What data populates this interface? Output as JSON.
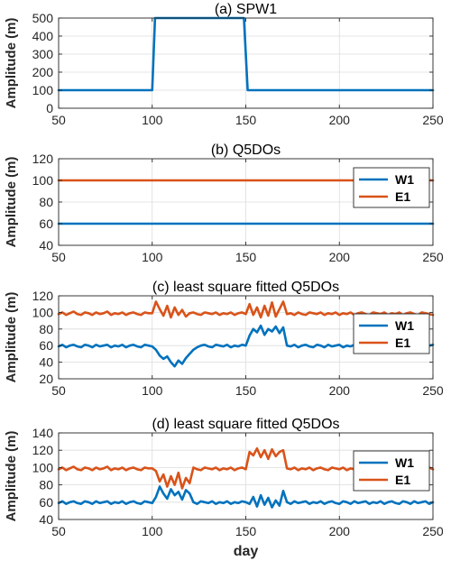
{
  "colors": {
    "W1": "#0072BD",
    "E1": "#D95319",
    "SPW1": "#0072BD"
  },
  "xlabel_bottom": "day",
  "chart_data": [
    {
      "type": "line",
      "title": "(a) SPW1",
      "ylabel": "Amplitude (m)",
      "xlim": [
        50,
        250
      ],
      "ylim": [
        0,
        500
      ],
      "xticks": [
        50,
        100,
        150,
        200,
        250
      ],
      "yticks": [
        0,
        100,
        200,
        300,
        400,
        500
      ],
      "grid": true,
      "legend": null,
      "series": [
        {
          "color": "#0072BD",
          "x": [
            50,
            100,
            101.5,
            149,
            151,
            250
          ],
          "y": [
            100,
            100,
            500,
            500,
            100,
            100
          ]
        }
      ]
    },
    {
      "type": "line",
      "title": "(b) Q5DOs",
      "ylabel": "Amplitude (m)",
      "xlim": [
        50,
        250
      ],
      "ylim": [
        40,
        120
      ],
      "xticks": [
        50,
        100,
        150,
        200,
        250
      ],
      "yticks": [
        40,
        60,
        80,
        100,
        120
      ],
      "grid": true,
      "legend": "top-right",
      "series": [
        {
          "name": "W1",
          "color": "#0072BD",
          "x": [
            50,
            250
          ],
          "y": [
            60,
            60
          ]
        },
        {
          "name": "E1",
          "color": "#D95319",
          "x": [
            50,
            250
          ],
          "y": [
            100,
            100
          ]
        }
      ]
    },
    {
      "type": "line",
      "title": "(c) least square fitted Q5DOs",
      "ylabel": "Amplitude (m)",
      "xlim": [
        50,
        250
      ],
      "ylim": [
        20,
        120
      ],
      "xticks": [
        50,
        100,
        150,
        200,
        250
      ],
      "yticks": [
        20,
        40,
        60,
        80,
        100,
        120
      ],
      "grid": true,
      "legend": "right",
      "series": [
        {
          "name": "W1",
          "color": "#0072BD",
          "x": [
            50,
            52,
            54,
            56,
            58,
            60,
            62,
            64,
            66,
            68,
            70,
            72,
            74,
            76,
            78,
            80,
            82,
            84,
            86,
            88,
            90,
            92,
            94,
            96,
            98,
            100,
            102,
            104,
            106,
            108,
            110,
            112,
            114,
            116,
            118,
            120,
            122,
            124,
            126,
            128,
            130,
            132,
            134,
            136,
            138,
            140,
            142,
            144,
            146,
            148,
            150,
            152,
            154,
            156,
            158,
            160,
            162,
            164,
            166,
            168,
            170,
            172,
            174,
            176,
            178,
            180,
            182,
            184,
            186,
            188,
            190,
            192,
            194,
            196,
            198,
            200,
            202,
            204,
            206,
            208,
            210,
            212,
            214,
            216,
            218,
            220,
            222,
            224,
            226,
            228,
            230,
            232,
            234,
            236,
            238,
            240,
            242,
            244,
            246,
            248,
            250
          ],
          "y": [
            59,
            61,
            58,
            60,
            61,
            59,
            58,
            61,
            60,
            58,
            61,
            59,
            60,
            61,
            58,
            60,
            59,
            61,
            58,
            60,
            61,
            59,
            58,
            61,
            60,
            59,
            55,
            48,
            44,
            47,
            40,
            35,
            42,
            38,
            45,
            50,
            55,
            58,
            60,
            61,
            59,
            58,
            61,
            60,
            59,
            61,
            58,
            60,
            59,
            61,
            60,
            72,
            80,
            76,
            84,
            73,
            80,
            77,
            83,
            75,
            82,
            60,
            59,
            61,
            58,
            60,
            61,
            59,
            58,
            61,
            60,
            58,
            61,
            59,
            60,
            61,
            58,
            60,
            59,
            61,
            58,
            60,
            61,
            59,
            58,
            61,
            60,
            59,
            61,
            58,
            60,
            61,
            59,
            58,
            61,
            60,
            58,
            61,
            59,
            60,
            61
          ]
        },
        {
          "name": "E1",
          "color": "#D95319",
          "x": [
            50,
            52,
            54,
            56,
            58,
            60,
            62,
            64,
            66,
            68,
            70,
            72,
            74,
            76,
            78,
            80,
            82,
            84,
            86,
            88,
            90,
            92,
            94,
            96,
            98,
            100,
            102,
            104,
            106,
            108,
            110,
            112,
            114,
            116,
            118,
            120,
            122,
            124,
            126,
            128,
            130,
            132,
            134,
            136,
            138,
            140,
            142,
            144,
            146,
            148,
            150,
            152,
            154,
            156,
            158,
            160,
            162,
            164,
            166,
            168,
            170,
            172,
            174,
            176,
            178,
            180,
            182,
            184,
            186,
            188,
            190,
            192,
            194,
            196,
            198,
            200,
            202,
            204,
            206,
            208,
            210,
            212,
            214,
            216,
            218,
            220,
            222,
            224,
            226,
            228,
            230,
            232,
            234,
            236,
            238,
            240,
            242,
            244,
            246,
            248,
            250
          ],
          "y": [
            98,
            100,
            97,
            99,
            101,
            98,
            97,
            100,
            99,
            97,
            100,
            98,
            99,
            101,
            97,
            99,
            98,
            100,
            97,
            99,
            100,
            98,
            97,
            100,
            99,
            99,
            113,
            104,
            96,
            108,
            94,
            106,
            97,
            103,
            95,
            99,
            100,
            98,
            97,
            100,
            99,
            98,
            100,
            97,
            99,
            98,
            100,
            97,
            99,
            100,
            98,
            110,
            97,
            106,
            94,
            108,
            96,
            112,
            95,
            104,
            113,
            98,
            99,
            97,
            100,
            98,
            97,
            100,
            99,
            98,
            100,
            97,
            99,
            98,
            100,
            97,
            99,
            98,
            100,
            97,
            99,
            100,
            98,
            97,
            100,
            99,
            98,
            100,
            97,
            99,
            98,
            100,
            97,
            99,
            100,
            98,
            97,
            100,
            99,
            98,
            97
          ]
        }
      ]
    },
    {
      "type": "line",
      "title": "(d) least square fitted Q5DOs",
      "ylabel": "Amplitude (m)",
      "xlim": [
        50,
        250
      ],
      "ylim": [
        40,
        140
      ],
      "xticks": [
        50,
        100,
        150,
        200,
        250
      ],
      "yticks": [
        40,
        60,
        80,
        100,
        120,
        140
      ],
      "grid": true,
      "legend": "right",
      "series": [
        {
          "name": "W1",
          "color": "#0072BD",
          "x": [
            50,
            52,
            54,
            56,
            58,
            60,
            62,
            64,
            66,
            68,
            70,
            72,
            74,
            76,
            78,
            80,
            82,
            84,
            86,
            88,
            90,
            92,
            94,
            96,
            98,
            100,
            102,
            104,
            106,
            108,
            110,
            112,
            114,
            116,
            118,
            120,
            122,
            124,
            126,
            128,
            130,
            132,
            134,
            136,
            138,
            140,
            142,
            144,
            146,
            148,
            150,
            152,
            154,
            156,
            158,
            160,
            162,
            164,
            166,
            168,
            170,
            172,
            174,
            176,
            178,
            180,
            182,
            184,
            186,
            188,
            190,
            192,
            194,
            196,
            198,
            200,
            202,
            204,
            206,
            208,
            210,
            212,
            214,
            216,
            218,
            220,
            222,
            224,
            226,
            228,
            230,
            232,
            234,
            236,
            238,
            240,
            242,
            244,
            246,
            248,
            250
          ],
          "y": [
            59,
            61,
            58,
            60,
            61,
            59,
            58,
            61,
            60,
            58,
            61,
            59,
            60,
            61,
            58,
            60,
            59,
            61,
            58,
            60,
            61,
            59,
            58,
            61,
            60,
            59,
            66,
            78,
            70,
            64,
            75,
            68,
            72,
            63,
            74,
            70,
            60,
            58,
            61,
            60,
            59,
            61,
            58,
            60,
            59,
            61,
            58,
            60,
            59,
            61,
            60,
            58,
            66,
            55,
            68,
            57,
            65,
            54,
            62,
            56,
            73,
            60,
            58,
            61,
            59,
            60,
            61,
            58,
            60,
            59,
            61,
            58,
            60,
            61,
            59,
            58,
            61,
            60,
            58,
            61,
            59,
            60,
            61,
            58,
            60,
            59,
            61,
            58,
            60,
            61,
            59,
            58,
            61,
            60,
            58,
            61,
            59,
            60,
            61,
            58,
            60
          ]
        },
        {
          "name": "E1",
          "color": "#D95319",
          "x": [
            50,
            52,
            54,
            56,
            58,
            60,
            62,
            64,
            66,
            68,
            70,
            72,
            74,
            76,
            78,
            80,
            82,
            84,
            86,
            88,
            90,
            92,
            94,
            96,
            98,
            100,
            102,
            104,
            106,
            108,
            110,
            112,
            114,
            116,
            118,
            120,
            122,
            124,
            126,
            128,
            130,
            132,
            134,
            136,
            138,
            140,
            142,
            144,
            146,
            148,
            150,
            152,
            154,
            156,
            158,
            160,
            162,
            164,
            166,
            168,
            170,
            172,
            174,
            176,
            178,
            180,
            182,
            184,
            186,
            188,
            190,
            192,
            194,
            196,
            198,
            200,
            202,
            204,
            206,
            208,
            210,
            212,
            214,
            216,
            218,
            220,
            222,
            224,
            226,
            228,
            230,
            232,
            234,
            236,
            238,
            240,
            242,
            244,
            246,
            248,
            250
          ],
          "y": [
            98,
            100,
            97,
            99,
            101,
            98,
            97,
            100,
            99,
            97,
            100,
            98,
            99,
            101,
            97,
            99,
            98,
            100,
            97,
            99,
            100,
            98,
            97,
            100,
            99,
            99,
            96,
            84,
            92,
            78,
            90,
            80,
            94,
            76,
            88,
            82,
            100,
            98,
            97,
            100,
            99,
            98,
            100,
            97,
            99,
            98,
            100,
            97,
            99,
            100,
            98,
            118,
            114,
            122,
            112,
            120,
            110,
            121,
            113,
            118,
            120,
            99,
            98,
            100,
            97,
            99,
            98,
            100,
            97,
            99,
            100,
            98,
            97,
            100,
            99,
            98,
            100,
            97,
            99,
            98,
            100,
            97,
            99,
            100,
            98,
            97,
            100,
            99,
            98,
            100,
            97,
            99,
            98,
            100,
            97,
            99,
            100,
            98,
            97,
            100,
            98
          ]
        }
      ]
    }
  ]
}
